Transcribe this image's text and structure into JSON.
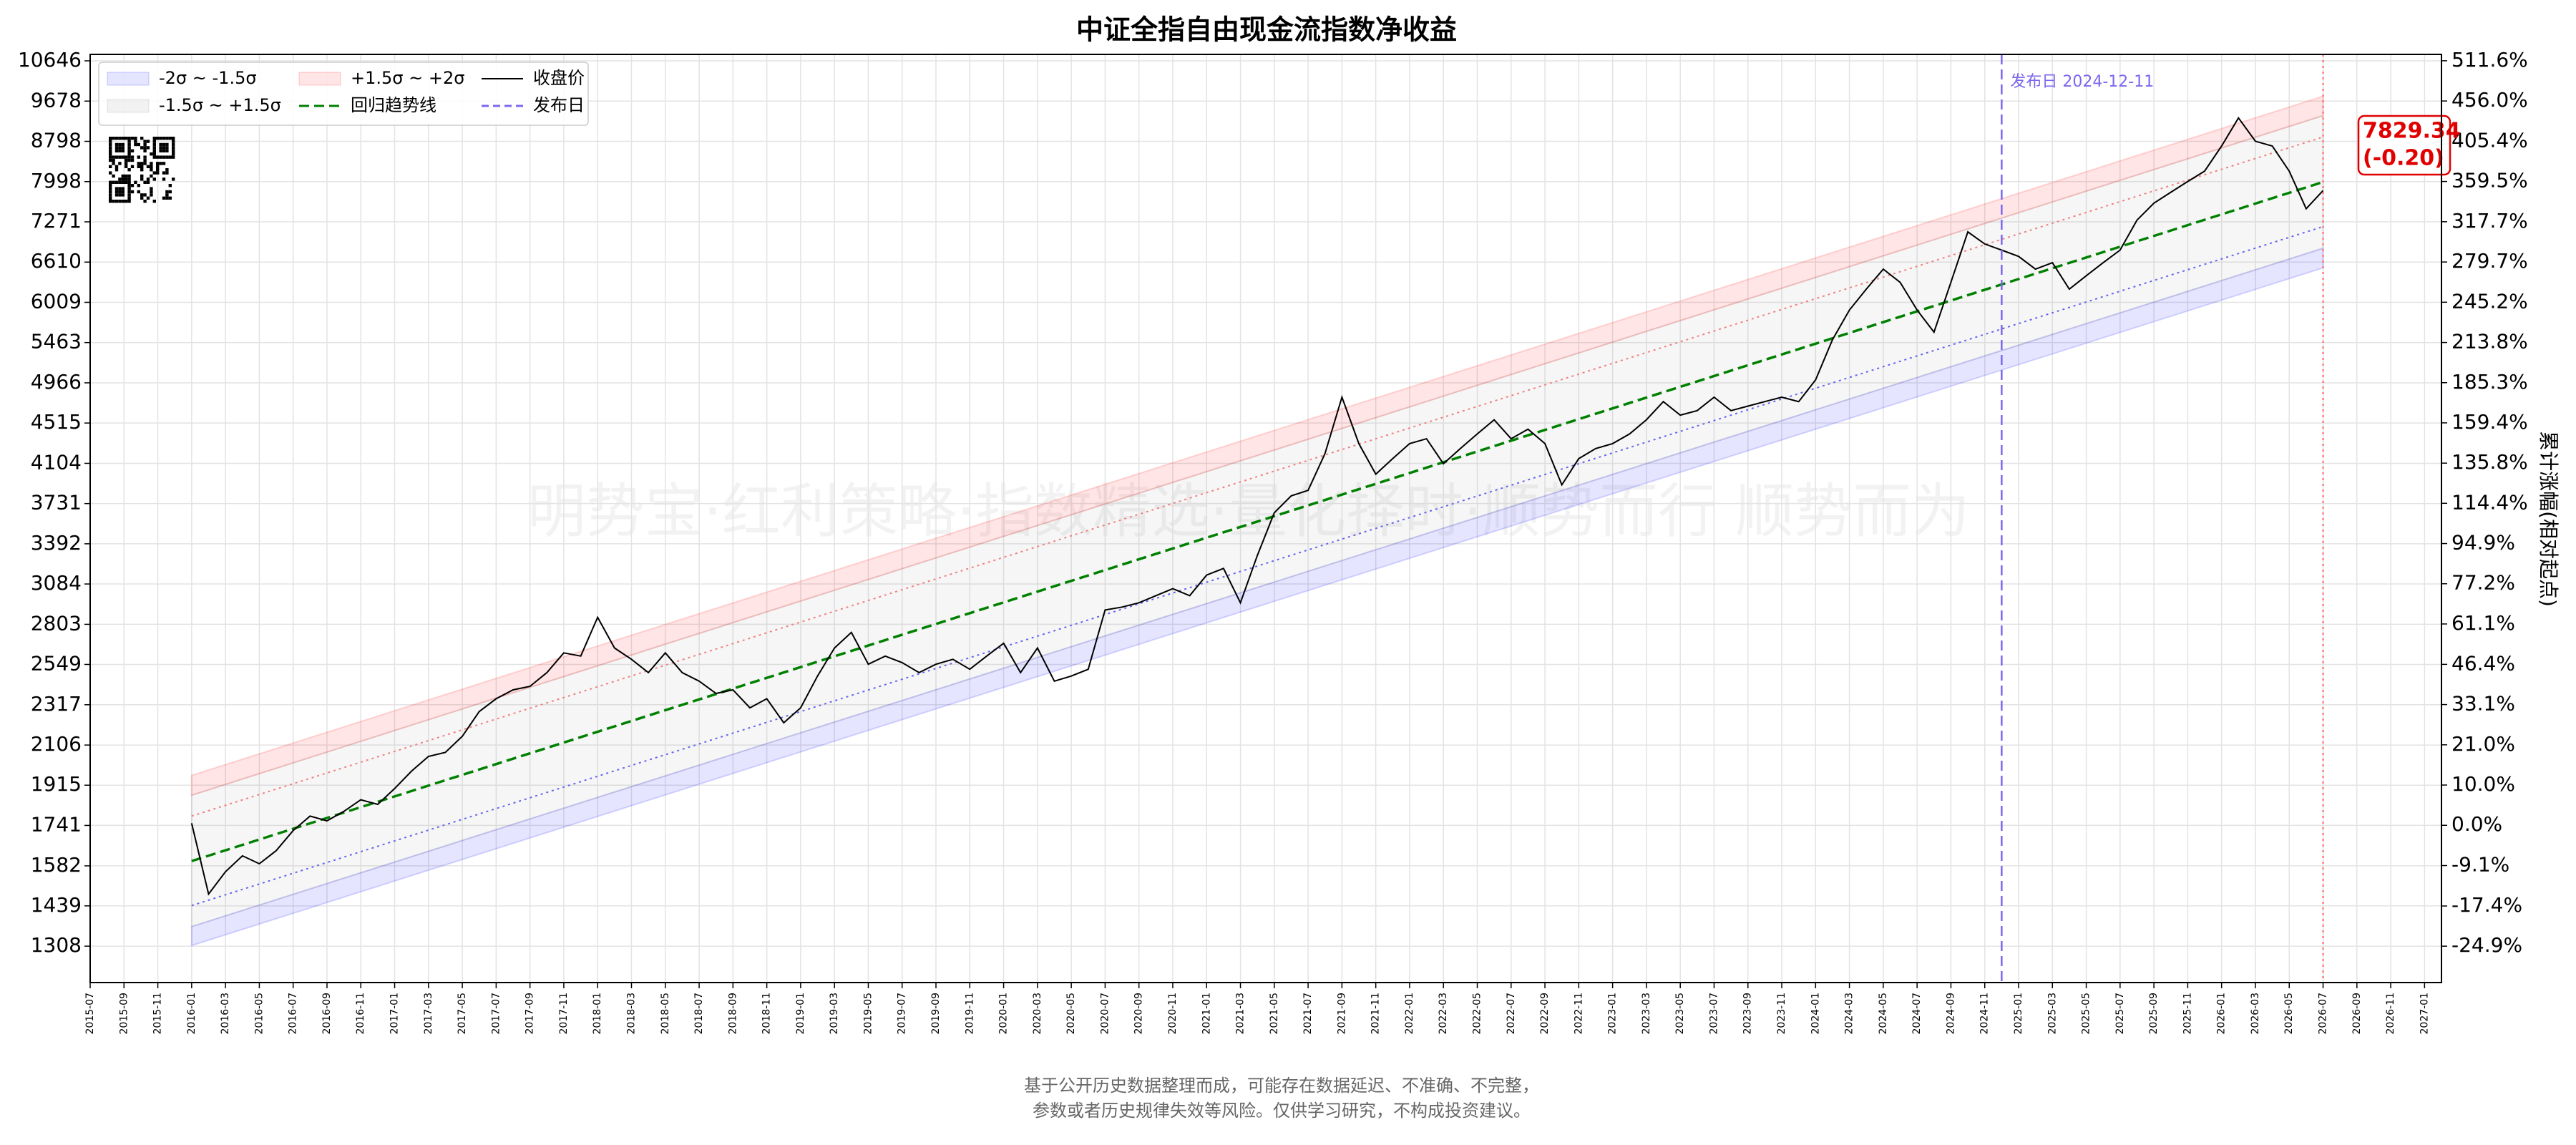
{
  "chart_data": {
    "type": "line",
    "title": "中证全指自由现金流指数净收益",
    "watermark": "明势宝·红利策略·指数精选·量化择时·顺势而行 顺势而为",
    "y2label": "累计涨幅(相对起点)",
    "footer": [
      "基于公开历史数据整理而成，可能存在数据延迟、不准确、不完整，",
      "参数或者历史规律失效等风险。仅供学习研究，不构成投资建议。"
    ],
    "log_scale": true,
    "y2_scale": "log-ratio",
    "grid": true,
    "legend": "upper left",
    "x": [
      "2016-01",
      "2016-02",
      "2016-03",
      "2016-04",
      "2016-05",
      "2016-06",
      "2016-07",
      "2016-08",
      "2016-09",
      "2016-10",
      "2016-11",
      "2016-12",
      "2017-01",
      "2017-02",
      "2017-03",
      "2017-04",
      "2017-05",
      "2017-06",
      "2017-07",
      "2017-08",
      "2017-09",
      "2017-10",
      "2017-11",
      "2017-12",
      "2018-01",
      "2018-02",
      "2018-03",
      "2018-04",
      "2018-05",
      "2018-06",
      "2018-07",
      "2018-08",
      "2018-09",
      "2018-10",
      "2018-11",
      "2018-12",
      "2019-01",
      "2019-02",
      "2019-03",
      "2019-04",
      "2019-05",
      "2019-06",
      "2019-07",
      "2019-08",
      "2019-09",
      "2019-10",
      "2019-11",
      "2019-12",
      "2020-01",
      "2020-02",
      "2020-03",
      "2020-04",
      "2020-05",
      "2020-06",
      "2020-07",
      "2020-08",
      "2020-09",
      "2020-10",
      "2020-11",
      "2020-12",
      "2021-01",
      "2021-02",
      "2021-03",
      "2021-04",
      "2021-05",
      "2021-06",
      "2021-07",
      "2021-08",
      "2021-09",
      "2021-10",
      "2021-11",
      "2021-12",
      "2022-01",
      "2022-02",
      "2022-03",
      "2022-04",
      "2022-05",
      "2022-06",
      "2022-07",
      "2022-08",
      "2022-09",
      "2022-10",
      "2022-11",
      "2022-12",
      "2023-01",
      "2023-02",
      "2023-03",
      "2023-04",
      "2023-05",
      "2023-06",
      "2023-07",
      "2023-08",
      "2023-09",
      "2023-10",
      "2023-11",
      "2023-12",
      "2024-01",
      "2024-02",
      "2024-03",
      "2024-04",
      "2024-05",
      "2024-06",
      "2024-07",
      "2024-08",
      "2024-09",
      "2024-10",
      "2024-11",
      "2024-12",
      "2025-01",
      "2025-02",
      "2025-03",
      "2025-04",
      "2025-05",
      "2025-06",
      "2025-07",
      "2025-08",
      "2025-09",
      "2025-10",
      "2025-11",
      "2025-12",
      "2026-01",
      "2026-02",
      "2026-03",
      "2026-04",
      "2026-05",
      "2026-06",
      "2026-07"
    ],
    "series": [
      {
        "name": "收盘价",
        "color": "#000000",
        "values": [
          1750,
          1480,
          1560,
          1620,
          1590,
          1640,
          1720,
          1780,
          1760,
          1800,
          1850,
          1830,
          1900,
          1980,
          2050,
          2070,
          2150,
          2280,
          2350,
          2400,
          2420,
          2500,
          2620,
          2600,
          2850,
          2650,
          2580,
          2500,
          2620,
          2500,
          2450,
          2380,
          2400,
          2300,
          2350,
          2220,
          2300,
          2480,
          2650,
          2750,
          2550,
          2600,
          2560,
          2500,
          2550,
          2580,
          2520,
          2600,
          2680,
          2500,
          2650,
          2450,
          2480,
          2520,
          2900,
          2920,
          2950,
          3000,
          3050,
          3000,
          3150,
          3200,
          2950,
          3300,
          3650,
          3800,
          3850,
          4200,
          4800,
          4300,
          4000,
          4150,
          4300,
          4350,
          4100,
          4250,
          4400,
          4550,
          4350,
          4450,
          4300,
          3900,
          4150,
          4250,
          4300,
          4400,
          4550,
          4750,
          4600,
          4650,
          4800,
          4650,
          4700,
          4750,
          4800,
          4750,
          5000,
          5500,
          5900,
          6200,
          6500,
          6300,
          5900,
          5600,
          6300,
          7100,
          6900,
          6800,
          6700,
          6500,
          6600,
          6200,
          6400,
          6600,
          6800,
          7300,
          7600,
          7800,
          8000,
          8200,
          8700,
          9300,
          8800,
          8700,
          8200,
          7500,
          7829.34
        ]
      }
    ],
    "bands_x": [
      "2016-01",
      "2026-07"
    ],
    "bands": [
      {
        "name": "-2σ ~ -1.5σ",
        "color": "#0000ff",
        "lower": [
          1310,
          6520
        ],
        "upper": [
          1370,
          6830
        ]
      },
      {
        "name": "-1.5σ ~ +1.5σ",
        "color": "#808080",
        "lower": [
          1370,
          6830
        ],
        "upper": [
          1870,
          9350
        ]
      },
      {
        "name": "+1.5σ ~ +2σ",
        "color": "#ff0000",
        "lower": [
          1870,
          9350
        ],
        "upper": [
          1960,
          9790
        ]
      }
    ],
    "lines": [
      {
        "name": "回归趋势线",
        "color": "#008000",
        "style": "dashed",
        "x": [
          "2016-01",
          "2026-07"
        ],
        "values": [
          1600,
          7990
        ]
      },
      {
        "color": "#f08080",
        "style": "dotted",
        "x": [
          "2016-01",
          "2026-07"
        ],
        "values": [
          1780,
          8890
        ]
      },
      {
        "color": "#6666ee",
        "style": "dotted",
        "x": [
          "2016-01",
          "2026-07"
        ],
        "values": [
          1440,
          7190
        ]
      }
    ],
    "release": {
      "name": "发布日",
      "x": "2024-12",
      "color": "#7b68ee",
      "label": "发布日 2024-12-11"
    },
    "end_label": [
      "7829.34",
      "(-0.20)"
    ],
    "xlim": [
      "2015-07",
      "2027-02"
    ],
    "xticks": [
      "2015-07",
      "2015-09",
      "2015-11",
      "2016-01",
      "2016-03",
      "2016-05",
      "2016-07",
      "2016-09",
      "2016-11",
      "2017-01",
      "2017-03",
      "2017-05",
      "2017-07",
      "2017-09",
      "2017-11",
      "2018-01",
      "2018-03",
      "2018-05",
      "2018-07",
      "2018-09",
      "2018-11",
      "2019-01",
      "2019-03",
      "2019-05",
      "2019-07",
      "2019-09",
      "2019-11",
      "2020-01",
      "2020-03",
      "2020-05",
      "2020-07",
      "2020-09",
      "2020-11",
      "2021-01",
      "2021-03",
      "2021-05",
      "2021-07",
      "2021-09",
      "2021-11",
      "2022-01",
      "2022-03",
      "2022-05",
      "2022-07",
      "2022-09",
      "2022-11",
      "2023-01",
      "2023-03",
      "2023-05",
      "2023-07",
      "2023-09",
      "2023-11",
      "2024-01",
      "2024-03",
      "2024-05",
      "2024-07",
      "2024-09",
      "2024-11",
      "2025-01",
      "2025-03",
      "2025-05",
      "2025-07",
      "2025-09",
      "2025-11",
      "2026-01",
      "2026-03",
      "2026-05",
      "2026-07",
      "2026-09",
      "2026-11",
      "2027-01"
    ],
    "ylim": [
      1200,
      10810
    ],
    "yticks": [
      1308,
      1439,
      1582,
      1741,
      1915,
      2106,
      2317,
      2549,
      2803,
      3084,
      3392,
      3731,
      4104,
      4515,
      4966,
      5463,
      6009,
      6610,
      7271,
      7998,
      8798,
      9678,
      10646
    ],
    "y2lim": [
      -31.1,
      520.9
    ],
    "y2ticks": [
      {
        "value": -24.9,
        "label": "-24.9%"
      },
      {
        "value": -17.4,
        "label": "-17.4%"
      },
      {
        "value": -9.1,
        "label": "-9.1%"
      },
      {
        "value": 0.0,
        "label": "0.0%"
      },
      {
        "value": 10.0,
        "label": "10.0%"
      },
      {
        "value": 21.0,
        "label": "21.0%"
      },
      {
        "value": 33.1,
        "label": "33.1%"
      },
      {
        "value": 46.4,
        "label": "46.4%"
      },
      {
        "value": 61.1,
        "label": "61.1%"
      },
      {
        "value": 77.2,
        "label": "77.2%"
      },
      {
        "value": 94.9,
        "label": "94.9%"
      },
      {
        "value": 114.4,
        "label": "114.4%"
      },
      {
        "value": 135.8,
        "label": "135.8%"
      },
      {
        "value": 159.4,
        "label": "159.4%"
      },
      {
        "value": 185.3,
        "label": "185.3%"
      },
      {
        "value": 213.8,
        "label": "213.8%"
      },
      {
        "value": 245.2,
        "label": "245.2%"
      },
      {
        "value": 279.7,
        "label": "279.7%"
      },
      {
        "value": 317.7,
        "label": "317.7%"
      },
      {
        "value": 359.5,
        "label": "359.5%"
      },
      {
        "value": 405.4,
        "label": "405.4%"
      },
      {
        "value": 456.0,
        "label": "456.0%"
      },
      {
        "value": 511.6,
        "label": "511.6%"
      }
    ]
  }
}
